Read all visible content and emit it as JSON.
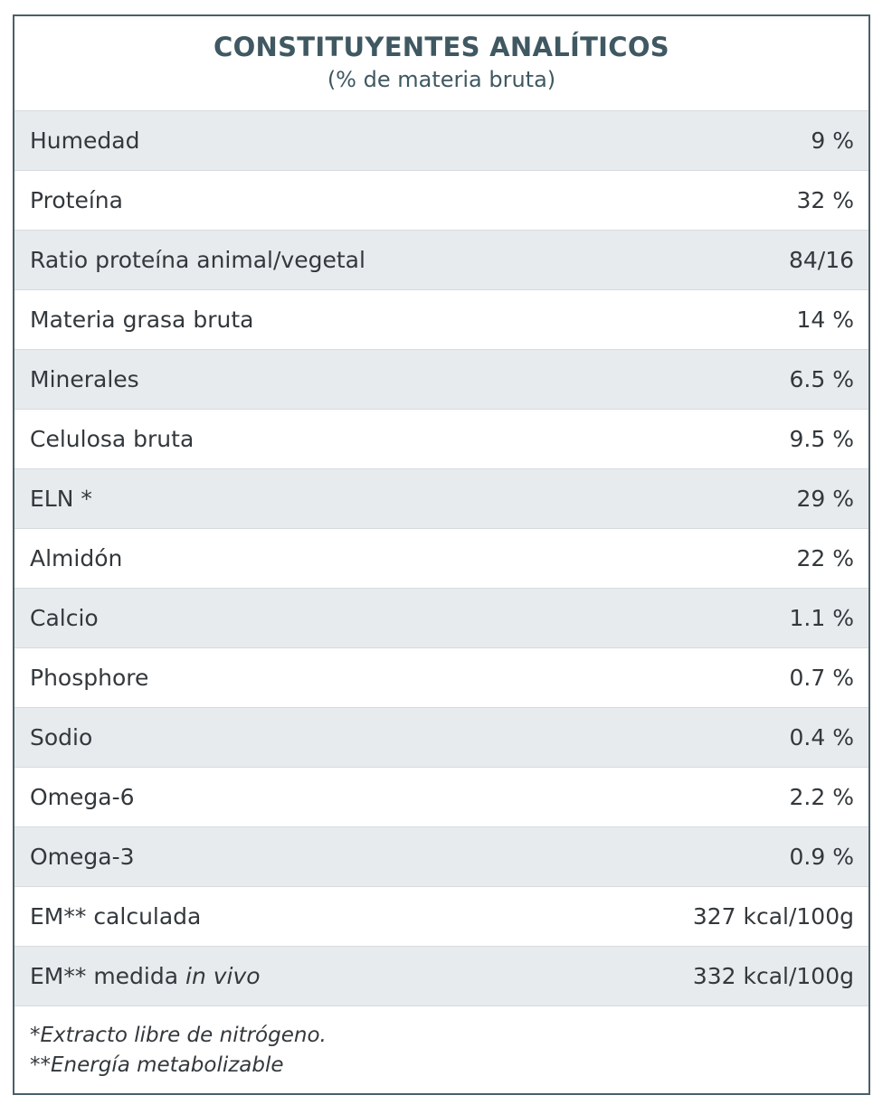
{
  "header": {
    "title": "CONSTITUYENTES ANALÍTICOS",
    "subtitle": "(% de materia bruta)"
  },
  "rows": [
    {
      "label": "Humedad",
      "value": "9 %"
    },
    {
      "label": "Proteína",
      "value": "32 %"
    },
    {
      "label": "Ratio proteína animal/vegetal",
      "value": "84/16"
    },
    {
      "label": "Materia grasa bruta",
      "value": "14 %"
    },
    {
      "label": "Minerales",
      "value": "6.5 %"
    },
    {
      "label": "Celulosa bruta",
      "value": "9.5 %"
    },
    {
      "label": "ELN *",
      "value": "29 %"
    },
    {
      "label": "Almidón",
      "value": "22 %"
    },
    {
      "label": "Calcio",
      "value": "1.1 %"
    },
    {
      "label": "Phosphore",
      "value": "0.7 %"
    },
    {
      "label": "Sodio",
      "value": "0.4 %"
    },
    {
      "label": "Omega-6",
      "value": "2.2 %"
    },
    {
      "label": "Omega-3",
      "value": "0.9 %"
    },
    {
      "label": "EM** calculada",
      "value": "327 kcal/100g"
    },
    {
      "label_prefix": "EM** medida ",
      "label_italic": "in vivo",
      "value": "332 kcal/100g"
    }
  ],
  "footnotes": [
    "*Extracto libre de nitrógeno.",
    "**Energía metabolizable"
  ]
}
